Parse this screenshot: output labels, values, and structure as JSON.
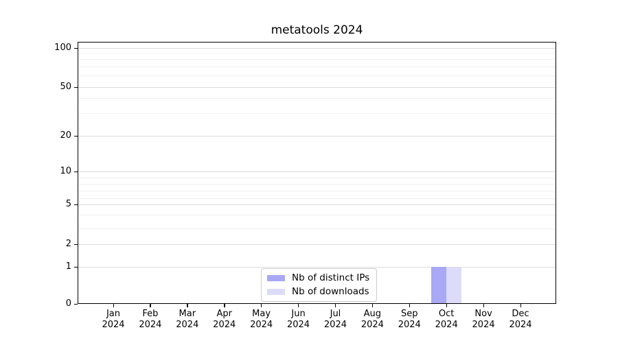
{
  "chart_data": {
    "type": "bar",
    "title": "metatools 2024",
    "categories": [
      {
        "month": "Jan",
        "year": "2024"
      },
      {
        "month": "Feb",
        "year": "2024"
      },
      {
        "month": "Mar",
        "year": "2024"
      },
      {
        "month": "Apr",
        "year": "2024"
      },
      {
        "month": "May",
        "year": "2024"
      },
      {
        "month": "Jun",
        "year": "2024"
      },
      {
        "month": "Jul",
        "year": "2024"
      },
      {
        "month": "Aug",
        "year": "2024"
      },
      {
        "month": "Sep",
        "year": "2024"
      },
      {
        "month": "Oct",
        "year": "2024"
      },
      {
        "month": "Nov",
        "year": "2024"
      },
      {
        "month": "Dec",
        "year": "2024"
      }
    ],
    "series": [
      {
        "name": "Nb of distinct IPs",
        "color": "#a8a8f4",
        "values": [
          0,
          0,
          0,
          0,
          0,
          0,
          0,
          0,
          0,
          1,
          0,
          0
        ]
      },
      {
        "name": "Nb of downloads",
        "color": "#dcdcf8",
        "values": [
          0,
          0,
          0,
          0,
          0,
          0,
          0,
          0,
          0,
          1,
          0,
          0
        ]
      }
    ],
    "xlabel": "",
    "ylabel": "",
    "y_ticks": [
      0,
      1,
      2,
      5,
      10,
      20,
      50,
      100
    ],
    "y_minor_ticks": [
      3,
      4,
      6,
      7,
      8,
      9,
      30,
      40,
      60,
      70,
      80,
      90
    ],
    "yscale": "symlog",
    "ylim": [
      0,
      115
    ],
    "grid": true,
    "legend_position": "lower center inside",
    "colors": {
      "grid_major": "#dbdbdb",
      "grid_minor": "#f0f0f0",
      "spine": "#000000",
      "text": "#000000",
      "legend_border": "#cccccc",
      "background": "#ffffff"
    }
  }
}
